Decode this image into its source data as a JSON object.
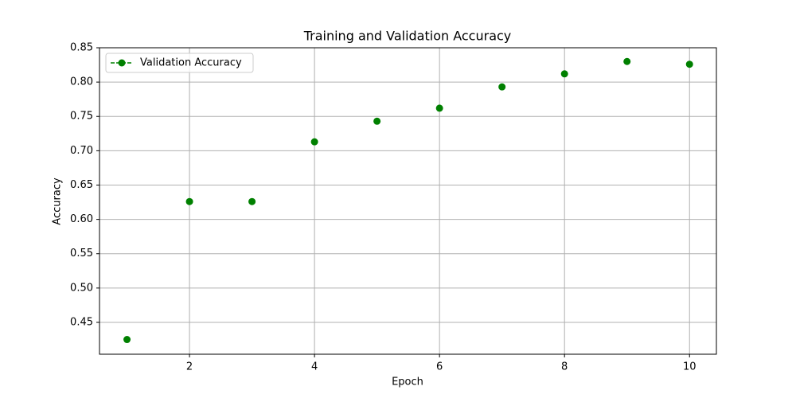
{
  "chart_data": {
    "type": "scatter",
    "title": "Training and Validation Accuracy",
    "x_label": "Epoch",
    "y_label": "Accuracy",
    "series": [
      {
        "name": "Validation Accuracy",
        "color": "#008000",
        "x": [
          1,
          2,
          3,
          4,
          5,
          6,
          7,
          8,
          9,
          10
        ],
        "values": [
          0.425,
          0.626,
          0.626,
          0.713,
          0.743,
          0.762,
          0.793,
          0.812,
          0.83,
          0.826
        ]
      }
    ],
    "xlim": [
      0.56,
      10.43
    ],
    "xticks": [
      2,
      4,
      6,
      8,
      10
    ],
    "ylim": [
      0.4036,
      0.85
    ],
    "yticks": [
      0.45,
      {
        "value": 0.5,
        "label": "0.50"
      },
      0.55,
      {
        "value": 0.6,
        "label": "0.60"
      },
      0.65,
      {
        "value": 0.7,
        "label": "0.70"
      },
      0.75,
      {
        "value": 0.8,
        "label": "0.80"
      },
      0.85
    ],
    "grid": true,
    "legend": "upper left"
  }
}
